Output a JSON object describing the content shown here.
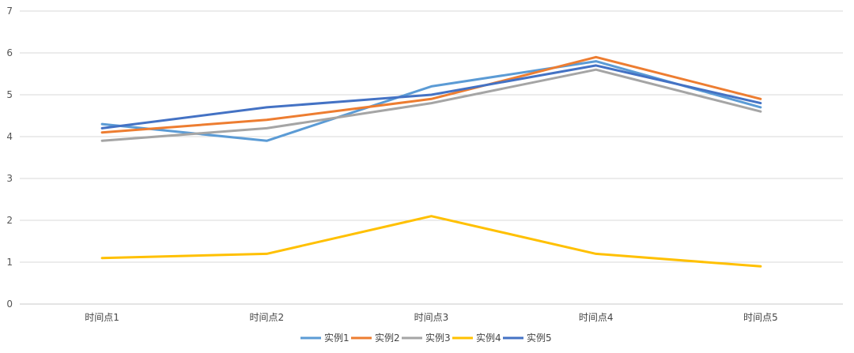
{
  "chart_data": {
    "type": "line",
    "title": "",
    "xlabel": "",
    "ylabel": "",
    "categories": [
      "时间点1",
      "时间点2",
      "时间点3",
      "时间点4",
      "时间点5"
    ],
    "ylim": [
      0,
      7
    ],
    "yticks": [
      0,
      1,
      2,
      3,
      4,
      5,
      6,
      7
    ],
    "grid": true,
    "legend_position": "bottom-center",
    "series": [
      {
        "name": "实例1",
        "color": "#5B9BD5",
        "values": [
          4.3,
          3.9,
          5.2,
          5.8,
          4.7
        ]
      },
      {
        "name": "实例2",
        "color": "#ED7D31",
        "values": [
          4.1,
          4.4,
          4.9,
          5.9,
          4.9
        ]
      },
      {
        "name": "实例3",
        "color": "#A5A5A5",
        "values": [
          3.9,
          4.2,
          4.8,
          5.6,
          4.6
        ]
      },
      {
        "name": "实例4",
        "color": "#FFC000",
        "values": [
          1.1,
          1.2,
          2.1,
          1.2,
          0.9
        ]
      },
      {
        "name": "实例5",
        "color": "#4472C4",
        "values": [
          4.2,
          4.7,
          5.0,
          5.7,
          4.8
        ]
      }
    ]
  }
}
